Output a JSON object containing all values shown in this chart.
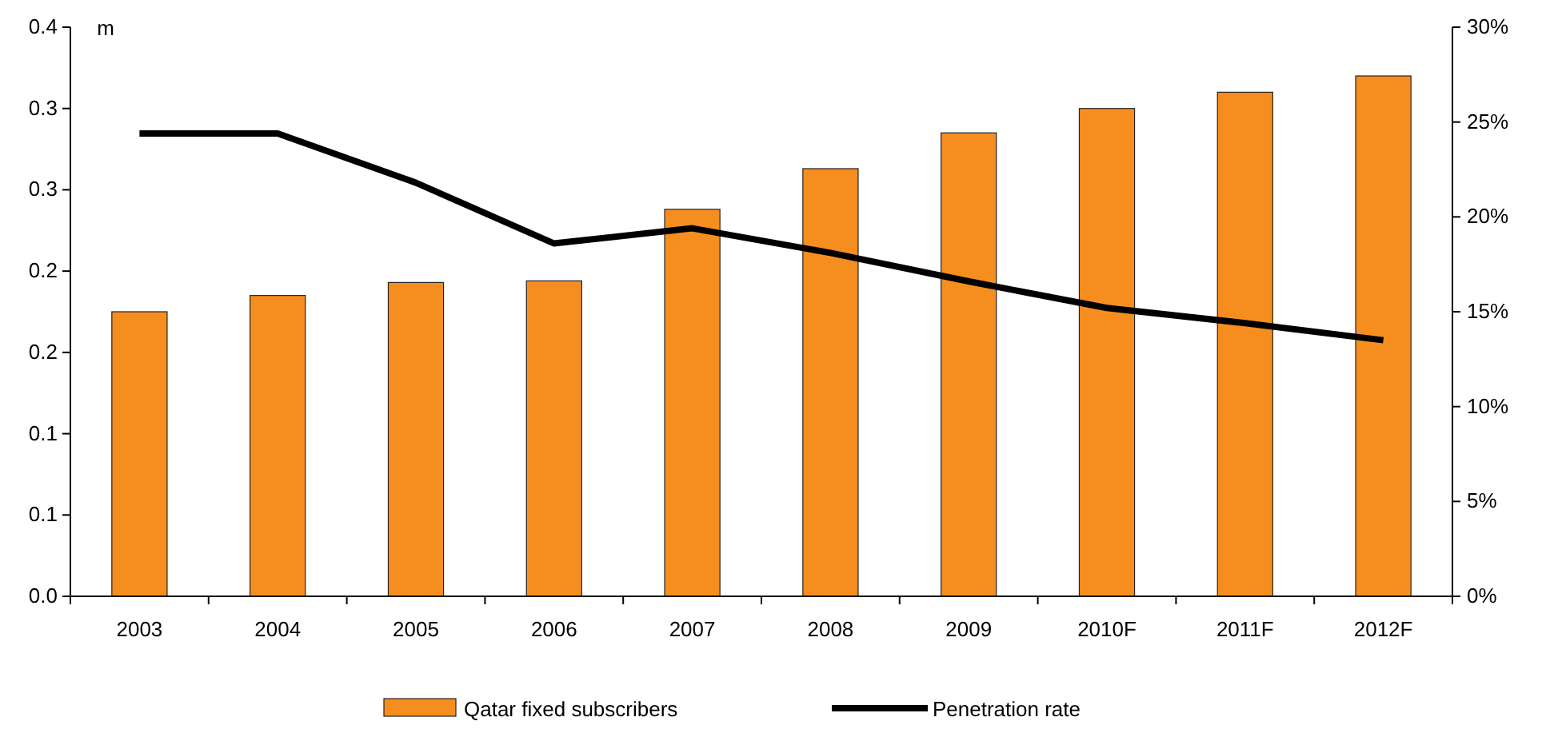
{
  "chart_data": {
    "type": "bar",
    "ylabel": "m",
    "categories": [
      "2003",
      "2004",
      "2005",
      "2006",
      "2007",
      "2008",
      "2009",
      "2010F",
      "2011F",
      "2012F"
    ],
    "series": [
      {
        "name": "Qatar fixed subscribers",
        "color": "#f68e1f",
        "values": [
          0.175,
          0.185,
          0.193,
          0.194,
          0.238,
          0.263,
          0.285,
          0.3,
          0.31,
          0.32
        ]
      },
      {
        "name": "Penetration rate",
        "type": "line",
        "axis": "y2",
        "color": "#000000",
        "values": [
          24.4,
          24.4,
          21.8,
          18.6,
          19.4,
          18.1,
          16.6,
          15.2,
          14.4,
          13.5
        ]
      }
    ],
    "ylim": [
      0,
      0.35
    ],
    "yticks": [
      {
        "value": 0,
        "label": "0.0"
      },
      {
        "value": 0.05,
        "label": "0.1"
      },
      {
        "value": 0.1,
        "label": "0.1"
      },
      {
        "value": 0.15,
        "label": "0.2"
      },
      {
        "value": 0.2,
        "label": "0.2"
      },
      {
        "value": 0.25,
        "label": "0.3"
      },
      {
        "value": 0.3,
        "label": "0.3"
      },
      {
        "value": 0.35,
        "label": "0.4"
      }
    ],
    "y2lim": [
      0,
      30
    ],
    "y2ticks": [
      {
        "value": 0,
        "label": "0%"
      },
      {
        "value": 5,
        "label": "5%"
      },
      {
        "value": 10,
        "label": "10%"
      },
      {
        "value": 15,
        "label": "15%"
      },
      {
        "value": 20,
        "label": "20%"
      },
      {
        "value": 25,
        "label": "25%"
      },
      {
        "value": 30,
        "label": "30%"
      }
    ],
    "grid": false,
    "legend": "bottom"
  }
}
